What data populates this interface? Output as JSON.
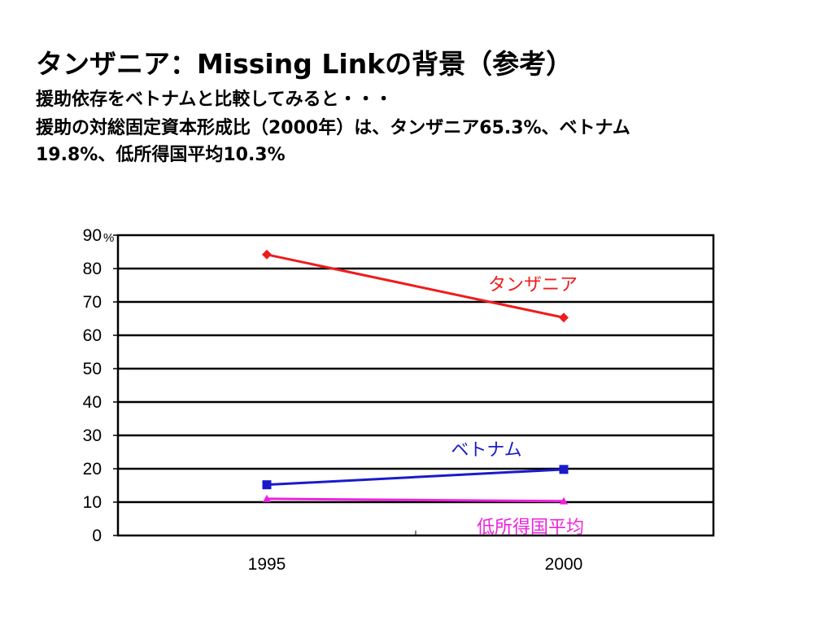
{
  "title": "タンザニア：Missing Linkの背景（参考）",
  "subtitle_lines": [
    "援助依存をベトナムと比較してみると・・・",
    "援助の対総固定資本形成比（2000年）は、タンザニア65.3%、ベトナム",
    "19.8%、低所得国平均10.3%"
  ],
  "chart_data": {
    "type": "line",
    "categories": [
      "1995",
      "2000"
    ],
    "ylim": [
      0,
      90
    ],
    "y_ticks": [
      "0",
      "10",
      "20",
      "30",
      "40",
      "50",
      "60",
      "70",
      "80",
      "90"
    ],
    "y_unit": "%",
    "grid": true,
    "series": [
      {
        "name": "タンザニア",
        "values": [
          84.2,
          65.3
        ],
        "color": "#ee1c1c",
        "marker": "diamond"
      },
      {
        "name": "ベトナム",
        "values": [
          15.2,
          19.8
        ],
        "color": "#1a1acc",
        "marker": "square"
      },
      {
        "name": "低所得国平均",
        "values": [
          11.0,
          10.3
        ],
        "color": "#ee22dd",
        "marker": "triangle"
      }
    ]
  }
}
